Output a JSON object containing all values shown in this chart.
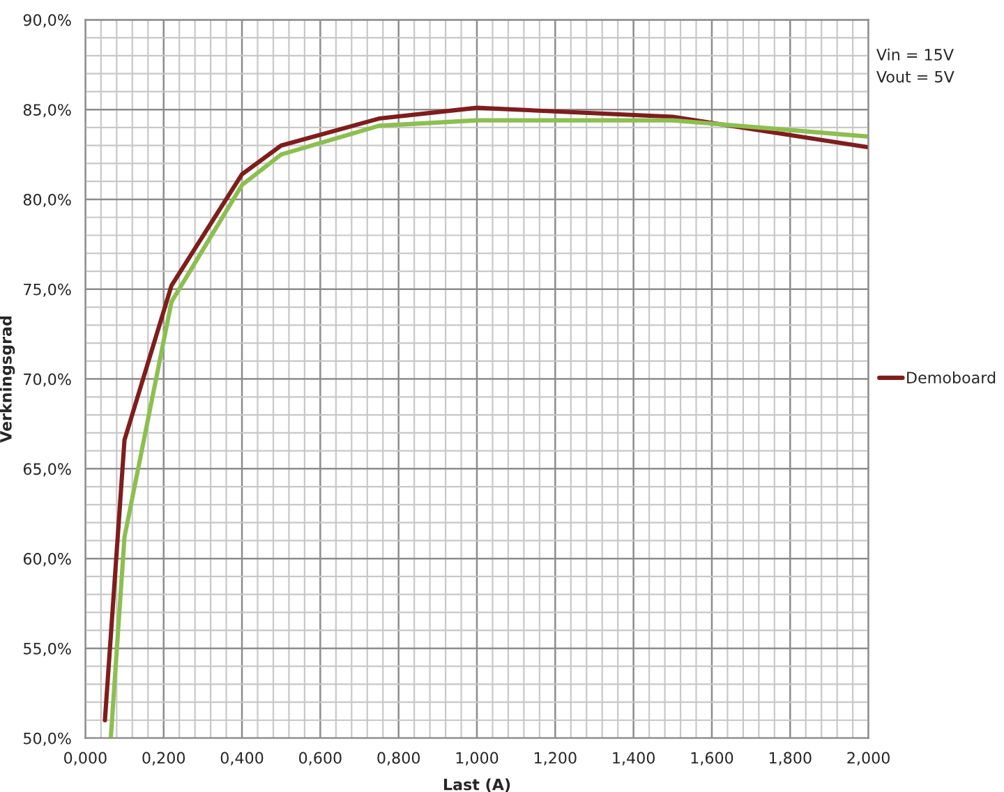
{
  "chart_data": {
    "type": "line",
    "xlabel": "Last (A)",
    "ylabel": "Verkningsgrad",
    "annotations": [
      "Vin = 15V\nVout = 5V"
    ],
    "series": [
      {
        "name": "Demoboard",
        "color": "#7f1d1d",
        "x": [
          0.05,
          0.1,
          0.22,
          0.4,
          0.5,
          0.75,
          1.0,
          1.5,
          2.0
        ],
        "values": [
          51.0,
          66.6,
          75.2,
          81.4,
          83.0,
          84.5,
          85.1,
          84.6,
          82.9
        ]
      },
      {
        "color": "#8cbf50",
        "x": [
          0.065,
          0.1,
          0.22,
          0.4,
          0.5,
          0.75,
          1.0,
          1.5,
          2.0
        ],
        "values": [
          50.0,
          61.2,
          74.3,
          80.8,
          82.5,
          84.1,
          84.4,
          84.4,
          83.5
        ]
      }
    ],
    "xlim": [
      0,
      2
    ],
    "ylim": [
      50,
      90
    ],
    "xticks": [
      {
        "value": 0,
        "label": "0,000"
      },
      {
        "value": 0.2,
        "label": "0,200"
      },
      {
        "value": 0.4,
        "label": "0,400"
      },
      {
        "value": 0.6,
        "label": "0,600"
      },
      {
        "value": 0.8,
        "label": "0,800"
      },
      {
        "value": 1.0,
        "label": "1,000"
      },
      {
        "value": 1.2,
        "label": "1,200"
      },
      {
        "value": 1.4,
        "label": "1,400"
      },
      {
        "value": 1.6,
        "label": "1,600"
      },
      {
        "value": 1.8,
        "label": "1,800"
      },
      {
        "value": 2.0,
        "label": "2,000"
      }
    ],
    "yticks": [
      {
        "value": 50,
        "label": "50,0%"
      },
      {
        "value": 55,
        "label": "55,0%"
      },
      {
        "value": 60,
        "label": "60,0%"
      },
      {
        "value": 65,
        "label": "65,0%"
      },
      {
        "value": 70,
        "label": "70,0%"
      },
      {
        "value": 75,
        "label": "75,0%"
      },
      {
        "value": 80,
        "label": "80,0%"
      },
      {
        "value": 85,
        "label": "85,0%"
      },
      {
        "value": 90,
        "label": "90,0%"
      }
    ],
    "grid": true,
    "legend": "right",
    "marker": "none",
    "line_style": "solid"
  }
}
